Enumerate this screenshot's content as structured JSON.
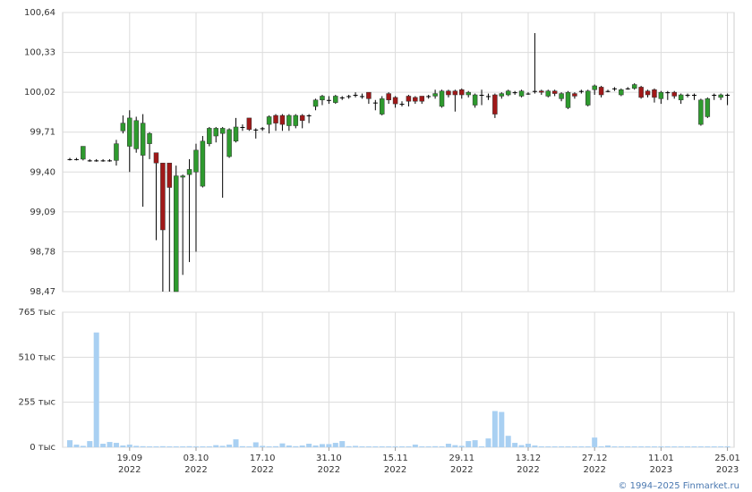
{
  "chart_data": [
    {
      "type": "candlestick",
      "up_color": "#2e9a2e",
      "down_color": "#a01818",
      "wick_color": "#000000",
      "grid": true,
      "ylim": [
        98.47,
        100.64
      ],
      "yticks": [
        {
          "value": 98.47,
          "label": "98,47"
        },
        {
          "value": 98.78,
          "label": "98,78"
        },
        {
          "value": 99.09,
          "label": "99,09"
        },
        {
          "value": 99.4,
          "label": "99,40"
        },
        {
          "value": 99.71,
          "label": "99,71"
        },
        {
          "value": 100.02,
          "label": "100,02"
        },
        {
          "value": 100.33,
          "label": "100,33"
        },
        {
          "value": 100.64,
          "label": "100,64"
        }
      ],
      "open": [
        99.5,
        99.5,
        99.5,
        99.49,
        99.49,
        99.49,
        99.49,
        99.49,
        99.72,
        99.6,
        99.58,
        99.53,
        99.62,
        99.55,
        99.47,
        99.47,
        98.47,
        99.36,
        99.38,
        99.4,
        99.29,
        99.62,
        99.68,
        99.7,
        99.52,
        99.64,
        99.75,
        99.82,
        99.73,
        99.74,
        99.77,
        99.84,
        99.84,
        99.76,
        99.76,
        99.84,
        99.84,
        99.91,
        99.96,
        99.96,
        99.94,
        99.98,
        99.99,
        100.0,
        99.99,
        100.02,
        99.94,
        99.85,
        100.01,
        99.98,
        99.93,
        99.99,
        99.98,
        99.99,
        99.99,
        99.99,
        99.91,
        100.03,
        100.03,
        100.04,
        100.0,
        99.92,
        100.0,
        99.99,
        100.0,
        99.99,
        100.0,
        100.02,
        99.99,
        100.01,
        100.03,
        100.03,
        99.99,
        100.03,
        99.97,
        99.9,
        100.01,
        100.03,
        99.92,
        100.04,
        100.06,
        100.03,
        100.05,
        100.0,
        100.05,
        100.05,
        100.06,
        100.03,
        100.04,
        99.97,
        100.02,
        100.02,
        99.96,
        100.0,
        100.0,
        99.77,
        99.83,
        100.0,
        99.98,
        100.0
      ],
      "high": [
        99.51,
        99.51,
        99.6,
        99.5,
        99.5,
        99.5,
        99.5,
        99.65,
        99.84,
        99.88,
        99.83,
        99.85,
        99.71,
        99.55,
        99.47,
        99.47,
        99.45,
        99.38,
        99.5,
        99.62,
        99.68,
        99.75,
        99.75,
        99.75,
        99.74,
        99.82,
        99.77,
        99.82,
        99.74,
        99.75,
        99.84,
        99.85,
        99.85,
        99.85,
        99.85,
        99.85,
        99.85,
        99.97,
        100.0,
        99.99,
        100.0,
        99.99,
        100.0,
        100.02,
        100.01,
        100.02,
        99.96,
        99.99,
        100.02,
        99.99,
        99.95,
        100.0,
        99.99,
        99.99,
        100.0,
        100.04,
        100.04,
        100.04,
        100.04,
        100.05,
        100.03,
        100.01,
        100.04,
        100.01,
        100.01,
        100.02,
        100.04,
        100.03,
        100.04,
        100.02,
        100.48,
        100.04,
        100.04,
        100.04,
        100.02,
        100.03,
        100.02,
        100.04,
        100.04,
        100.08,
        100.07,
        100.04,
        100.06,
        100.05,
        100.06,
        100.09,
        100.07,
        100.04,
        100.05,
        100.03,
        100.03,
        100.03,
        100.01,
        100.01,
        100.01,
        99.97,
        99.98,
        100.01,
        100.01,
        100.01
      ],
      "low": [
        99.49,
        99.49,
        99.49,
        99.48,
        99.48,
        99.48,
        99.48,
        99.45,
        99.7,
        99.4,
        99.55,
        99.13,
        99.5,
        98.87,
        98.47,
        98.47,
        98.47,
        98.6,
        98.7,
        98.78,
        99.28,
        99.6,
        99.63,
        99.2,
        99.51,
        99.63,
        99.72,
        99.72,
        99.66,
        99.72,
        99.7,
        99.72,
        99.72,
        99.72,
        99.74,
        99.74,
        99.78,
        99.88,
        99.92,
        99.93,
        99.93,
        99.96,
        99.97,
        99.98,
        99.97,
        99.93,
        99.88,
        99.84,
        99.93,
        99.9,
        99.91,
        99.91,
        99.93,
        99.93,
        99.97,
        99.97,
        99.9,
        99.98,
        99.87,
        99.97,
        99.98,
        99.9,
        99.92,
        99.96,
        99.82,
        99.97,
        99.99,
        100.0,
        99.98,
        100.0,
        100.01,
        100.0,
        99.98,
        99.99,
        99.95,
        99.89,
        99.97,
        100.01,
        99.91,
        100.0,
        99.98,
        100.02,
        100.03,
        99.99,
        100.04,
        100.04,
        99.97,
        99.98,
        99.94,
        99.93,
        99.96,
        99.97,
        99.93,
        99.98,
        99.96,
        99.76,
        99.82,
        99.96,
        99.96,
        99.92
      ],
      "close": [
        99.5,
        99.5,
        99.6,
        99.49,
        99.49,
        99.49,
        99.49,
        99.62,
        99.78,
        99.82,
        99.8,
        99.78,
        99.7,
        99.47,
        98.95,
        99.28,
        99.37,
        99.37,
        99.42,
        99.57,
        99.64,
        99.74,
        99.74,
        99.74,
        99.73,
        99.75,
        99.75,
        99.73,
        99.73,
        99.74,
        99.83,
        99.78,
        99.77,
        99.84,
        99.84,
        99.8,
        99.84,
        99.96,
        99.99,
        99.96,
        99.99,
        99.98,
        99.99,
        100.0,
        99.99,
        99.97,
        99.94,
        99.97,
        99.96,
        99.93,
        99.93,
        99.95,
        99.95,
        99.95,
        99.99,
        100.01,
        100.03,
        100.0,
        100.0,
        100.0,
        100.02,
        100.0,
        100.0,
        99.99,
        99.85,
        100.01,
        100.03,
        100.02,
        100.03,
        100.01,
        100.03,
        100.02,
        100.03,
        100.01,
        100.01,
        100.02,
        99.99,
        100.03,
        100.03,
        100.07,
        100.0,
        100.03,
        100.05,
        100.04,
        100.05,
        100.08,
        99.98,
        100.0,
        99.98,
        100.02,
        100.02,
        99.99,
        100.0,
        100.0,
        100.0,
        99.96,
        99.97,
        100.0,
        100.0,
        100.0
      ]
    },
    {
      "type": "bar",
      "color": "#a9d0f2",
      "grid": true,
      "ylim": [
        0,
        765
      ],
      "yticks": [
        {
          "value": 0,
          "label": "0 тыс"
        },
        {
          "value": 255,
          "label": "255 тыс"
        },
        {
          "value": 510,
          "label": "510 тыс"
        },
        {
          "value": 765,
          "label": "765 тыс"
        }
      ],
      "categories": [
        null,
        null,
        null,
        null,
        null,
        null,
        null,
        null,
        null,
        "19.09\n2022",
        null,
        null,
        null,
        null,
        null,
        null,
        null,
        null,
        null,
        "03.10\n2022",
        null,
        null,
        null,
        null,
        null,
        null,
        null,
        null,
        null,
        "17.10\n2022",
        null,
        null,
        null,
        null,
        null,
        null,
        null,
        null,
        null,
        "31.10\n2022",
        null,
        null,
        null,
        null,
        null,
        null,
        null,
        null,
        null,
        "15.11\n2022",
        null,
        null,
        null,
        null,
        null,
        null,
        null,
        null,
        null,
        "29.11\n2022",
        null,
        null,
        null,
        null,
        null,
        null,
        null,
        null,
        null,
        "13.12\n2022",
        null,
        null,
        null,
        null,
        null,
        null,
        null,
        null,
        null,
        "27.12\n2022",
        null,
        null,
        null,
        null,
        null,
        null,
        null,
        null,
        null,
        "11.01\n2023",
        null,
        null,
        null,
        null,
        null,
        null,
        null,
        null,
        null,
        "25.01\n2023"
      ],
      "values": [
        40,
        15,
        8,
        35,
        650,
        20,
        30,
        25,
        10,
        15,
        8,
        6,
        5,
        5,
        6,
        5,
        5,
        5,
        6,
        5,
        5,
        5,
        12,
        8,
        15,
        45,
        6,
        5,
        28,
        8,
        5,
        6,
        22,
        10,
        6,
        10,
        20,
        10,
        18,
        18,
        25,
        35,
        6,
        8,
        5,
        5,
        5,
        5,
        5,
        5,
        5,
        5,
        15,
        5,
        5,
        6,
        5,
        20,
        12,
        8,
        35,
        40,
        5,
        50,
        205,
        200,
        65,
        25,
        12,
        20,
        10,
        5,
        5,
        5,
        5,
        5,
        5,
        5,
        5,
        55,
        5,
        10,
        5,
        5,
        5,
        5,
        5,
        5,
        5,
        5,
        5,
        5,
        5,
        5,
        5,
        5,
        5,
        5,
        5,
        5
      ]
    }
  ],
  "source": "© 1994–2025 Finmarket.ru"
}
